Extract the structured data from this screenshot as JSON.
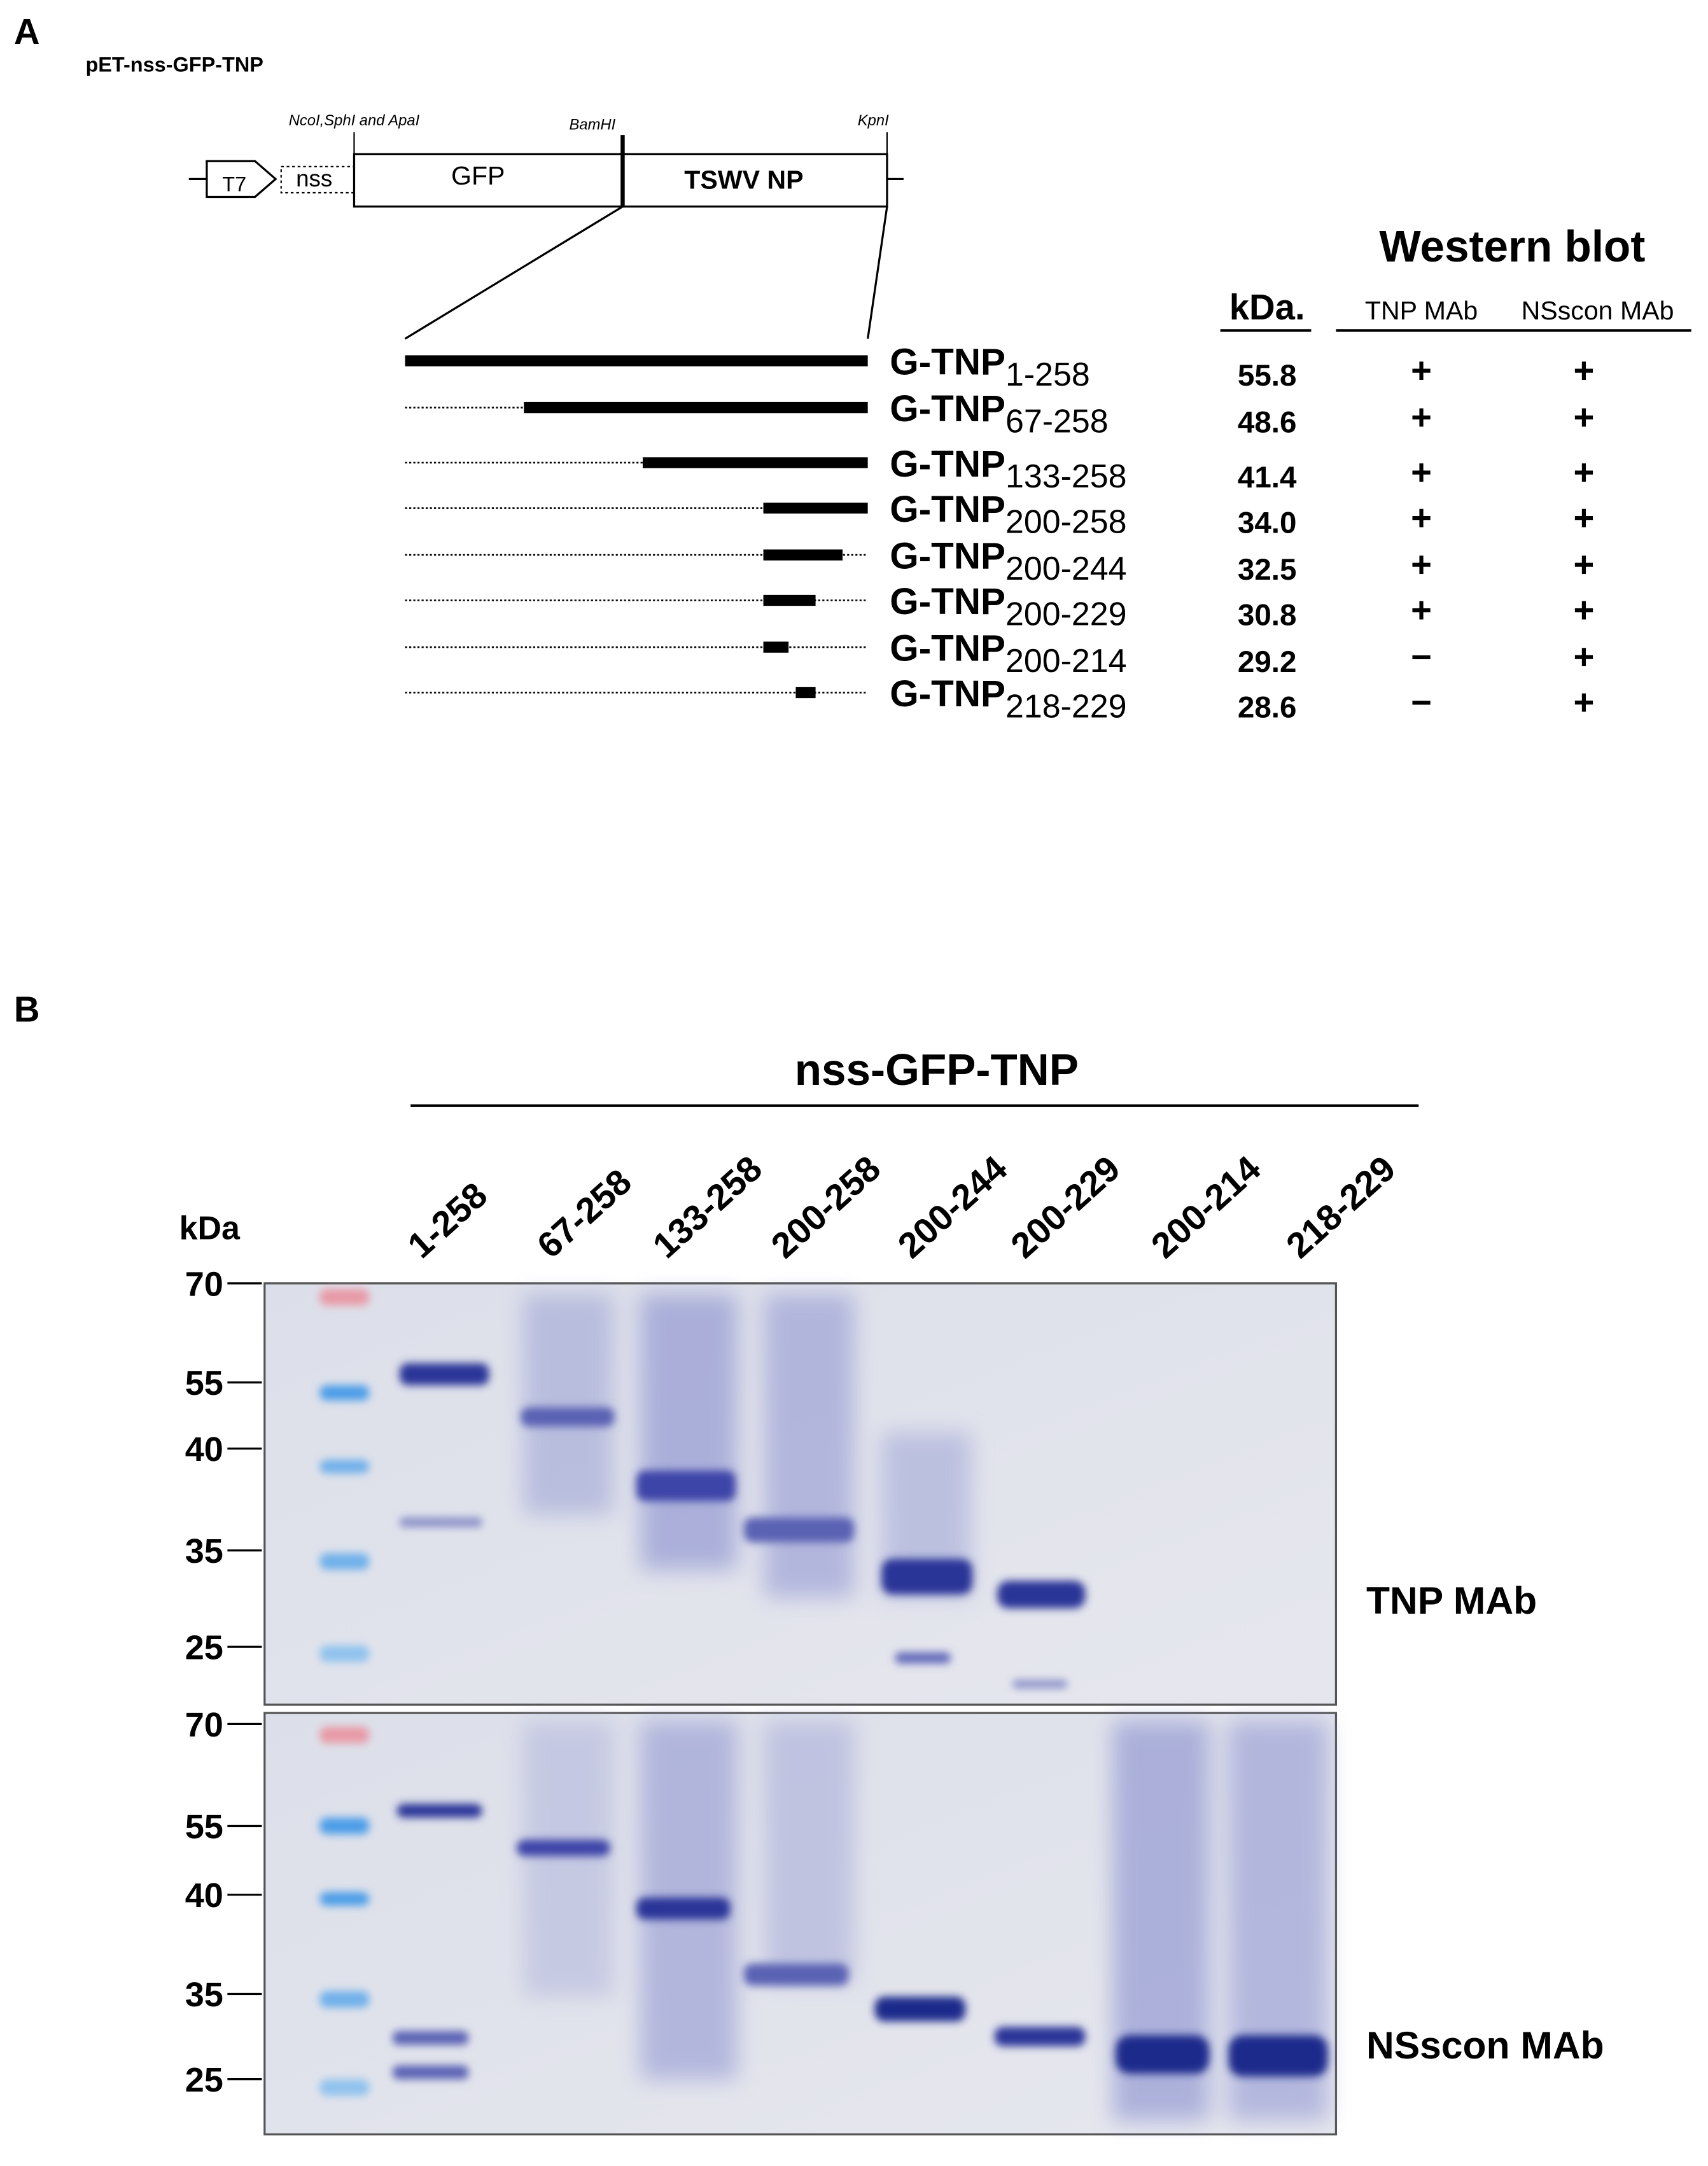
{
  "panel_a": {
    "label": "A",
    "title": "pET-nss-GFP-TNP",
    "map": {
      "sites": [
        "NcoI,SphI and ApaI",
        "BamHI",
        "KpnI"
      ],
      "promoter": "T7",
      "signal": "nss",
      "gfp": "GFP",
      "insert": "TSWV NP"
    },
    "western_blot": {
      "title": "Western blot",
      "kda_header": "kDa.",
      "antibodies": [
        "TNP MAb",
        "NSscon MAb"
      ]
    },
    "constructs": [
      {
        "name": "G-TNP",
        "range": "1-258",
        "kda": "55.8",
        "tnp_mab": "+",
        "nsscon_mab": "+"
      },
      {
        "name": "G-TNP",
        "range": "67-258",
        "kda": "48.6",
        "tnp_mab": "+",
        "nsscon_mab": "+"
      },
      {
        "name": "G-TNP",
        "range": "133-258",
        "kda": "41.4",
        "tnp_mab": "+",
        "nsscon_mab": "+"
      },
      {
        "name": "G-TNP",
        "range": "200-258",
        "kda": "34.0",
        "tnp_mab": "+",
        "nsscon_mab": "+"
      },
      {
        "name": "G-TNP",
        "range": "200-244",
        "kda": "32.5",
        "tnp_mab": "+",
        "nsscon_mab": "+"
      },
      {
        "name": "G-TNP",
        "range": "200-229",
        "kda": "30.8",
        "tnp_mab": "+",
        "nsscon_mab": "+"
      },
      {
        "name": "G-TNP",
        "range": "200-214",
        "kda": "29.2",
        "tnp_mab": "−",
        "nsscon_mab": "+"
      },
      {
        "name": "G-TNP",
        "range": "218-229",
        "kda": "28.6",
        "tnp_mab": "−",
        "nsscon_mab": "+"
      }
    ]
  },
  "panel_b": {
    "label": "B",
    "group": "nss-GFP-TNP",
    "kda_label": "kDa",
    "lanes": [
      "1-258",
      "67-258",
      "133-258",
      "200-258",
      "200-244",
      "200-229",
      "200-214",
      "218-229"
    ],
    "blots": [
      {
        "antibody": "TNP MAb",
        "markers": [
          "70",
          "55",
          "40",
          "35",
          "25"
        ]
      },
      {
        "antibody": "NSscon MAb",
        "markers": [
          "70",
          "55",
          "40",
          "35",
          "25"
        ]
      }
    ]
  }
}
